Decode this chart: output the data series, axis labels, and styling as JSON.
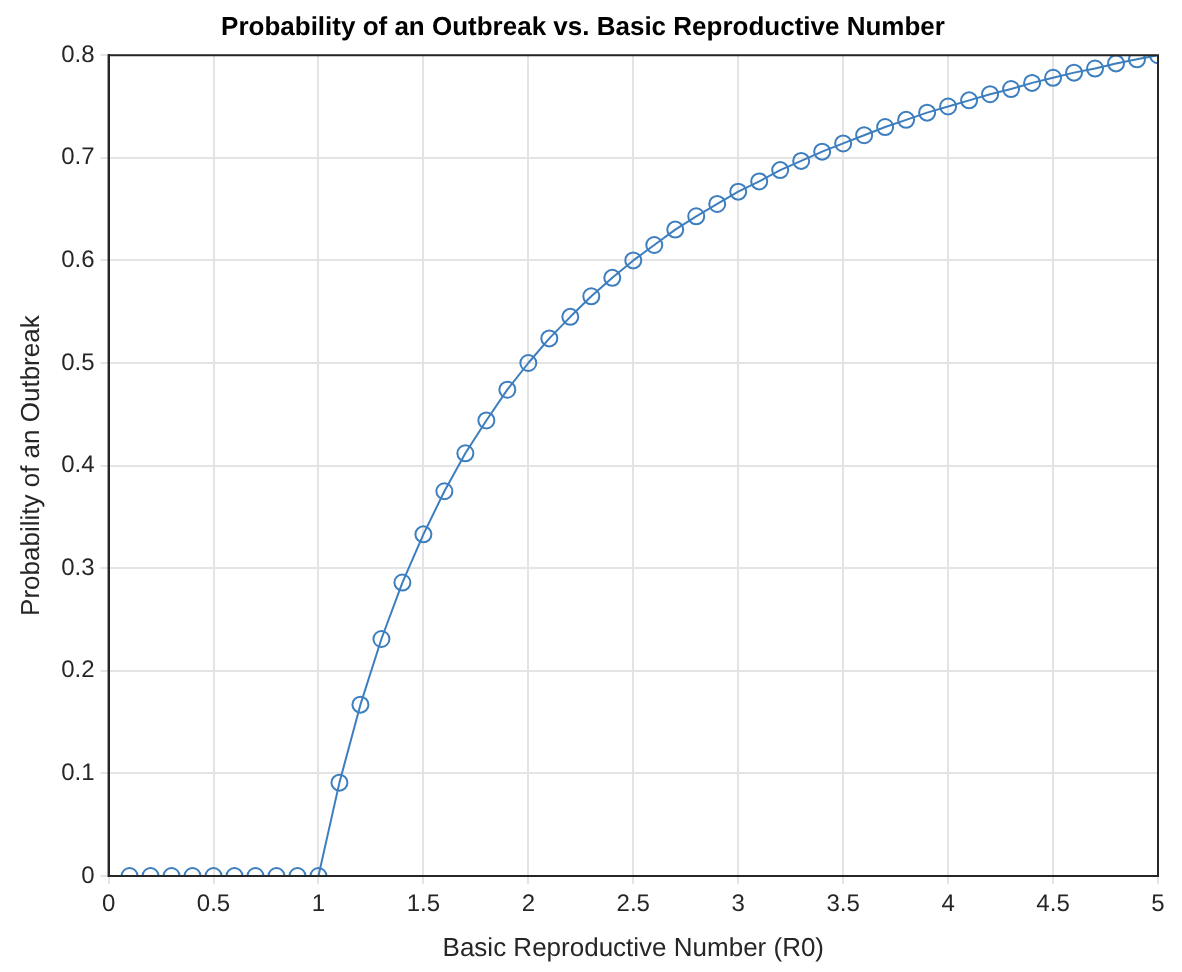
{
  "chart_data": {
    "type": "line",
    "title": "Probability of an Outbreak vs. Basic Reproductive Number",
    "xlabel": "Basic Reproductive Number (R0)",
    "ylabel": "Probability of an Outbreak",
    "x": [
      0.1,
      0.2,
      0.3,
      0.4,
      0.5,
      0.6,
      0.7,
      0.8,
      0.9,
      1.0,
      1.1,
      1.2,
      1.3,
      1.4,
      1.5,
      1.6,
      1.7,
      1.8,
      1.9,
      2.0,
      2.1,
      2.2,
      2.3,
      2.4,
      2.5,
      2.6,
      2.7,
      2.8,
      2.9,
      3.0,
      3.1,
      3.2,
      3.3,
      3.4,
      3.5,
      3.6,
      3.7,
      3.8,
      3.9,
      4.0,
      4.1,
      4.2,
      4.3,
      4.4,
      4.5,
      4.6,
      4.7,
      4.8,
      4.9,
      5.0
    ],
    "series": [
      {
        "color": "#3d7ebf",
        "values": [
          0,
          0,
          0,
          0,
          0,
          0,
          0,
          0,
          0,
          0,
          0.091,
          0.167,
          0.231,
          0.286,
          0.333,
          0.375,
          0.412,
          0.444,
          0.474,
          0.5,
          0.524,
          0.545,
          0.565,
          0.583,
          0.6,
          0.615,
          0.63,
          0.643,
          0.655,
          0.667,
          0.677,
          0.688,
          0.697,
          0.706,
          0.714,
          0.722,
          0.73,
          0.737,
          0.744,
          0.75,
          0.756,
          0.762,
          0.767,
          0.773,
          0.778,
          0.783,
          0.787,
          0.792,
          0.796,
          0.8
        ]
      }
    ],
    "xlim": [
      0,
      5
    ],
    "xticks": [
      0,
      0.5,
      1,
      1.5,
      2,
      2.5,
      3,
      3.5,
      4,
      4.5,
      5
    ],
    "ylim": [
      0,
      0.8
    ],
    "yticks": [
      0,
      0.1,
      0.2,
      0.3,
      0.4,
      0.5,
      0.6,
      0.7,
      0.8
    ],
    "grid": true,
    "legend": false,
    "marker": "circle",
    "line_style": "solid"
  }
}
